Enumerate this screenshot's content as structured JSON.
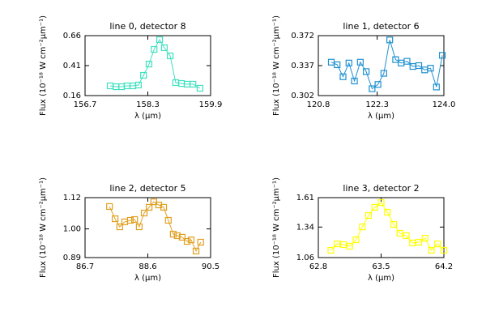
{
  "chart_data": [
    {
      "type": "line",
      "title": "line 0, detector 8",
      "xlabel": "λ (μm)",
      "ylabel": "Flux (10⁻¹⁸ W cm⁻²μm⁻¹)",
      "color": "#40e0c0",
      "marker": "square",
      "x": [
        157.34,
        157.49,
        157.63,
        157.77,
        157.92,
        158.06,
        158.19,
        158.33,
        158.46,
        158.6,
        158.72,
        158.87,
        159.01,
        159.16,
        159.3,
        159.45,
        159.63
      ],
      "values": [
        0.241,
        0.234,
        0.234,
        0.241,
        0.241,
        0.248,
        0.329,
        0.423,
        0.545,
        0.626,
        0.559,
        0.491,
        0.268,
        0.261,
        0.255,
        0.255,
        0.221
      ],
      "xlim": [
        156.7,
        159.9
      ],
      "xticks": [
        156.7,
        158.3,
        159.9
      ],
      "ylim": [
        0.16,
        0.66
      ],
      "yticks": [
        0.16,
        0.41,
        0.66
      ]
    },
    {
      "type": "line",
      "title": "line 1, detector 6",
      "xlabel": "λ (μm)",
      "ylabel": "Flux (10⁻¹⁸ W cm⁻²μm⁻¹)",
      "color": "#1e90d0",
      "marker": "square",
      "x": [
        121.13,
        121.28,
        121.43,
        121.58,
        121.72,
        121.87,
        122.02,
        122.17,
        122.32,
        122.47,
        122.62,
        122.77,
        122.91,
        123.06,
        123.21,
        123.36,
        123.51,
        123.66,
        123.81,
        123.96
      ],
      "values": [
        0.341,
        0.338,
        0.324,
        0.34,
        0.319,
        0.341,
        0.33,
        0.31,
        0.315,
        0.328,
        0.367,
        0.344,
        0.34,
        0.342,
        0.336,
        0.337,
        0.332,
        0.334,
        0.312,
        0.349
      ],
      "xlim": [
        120.8,
        124.0
      ],
      "xticks": [
        120.8,
        122.3,
        {
          "value": 124,
          "label": "124.0"
        }
      ],
      "ylim": [
        0.302,
        0.372
      ],
      "yticks": [
        0.302,
        0.337,
        0.372
      ]
    },
    {
      "type": "line",
      "title": "line 2, detector 5",
      "xlabel": "λ (μm)",
      "ylabel": "Flux (10⁻¹⁸ W cm⁻²μm⁻¹)",
      "color": "#e0a020",
      "marker": "square",
      "x": [
        87.44,
        87.61,
        87.75,
        87.9,
        88.07,
        88.2,
        88.34,
        88.49,
        88.64,
        88.78,
        88.93,
        89.08,
        89.22,
        89.37,
        89.49,
        89.64,
        89.79,
        89.91,
        90.06,
        90.2
      ],
      "values": [
        1.086,
        1.039,
        1.008,
        1.027,
        1.033,
        1.036,
        1.008,
        1.061,
        1.083,
        1.104,
        1.092,
        1.083,
        1.033,
        0.98,
        0.974,
        0.968,
        0.952,
        0.958,
        0.915,
        0.949
      ],
      "xlim": [
        86.7,
        90.5
      ],
      "xticks": [
        86.7,
        88.6,
        90.5
      ],
      "ylim": [
        0.89,
        1.12
      ],
      "yticks": [
        0.89,
        {
          "value": 1,
          "label": "1.00"
        },
        1.12
      ]
    },
    {
      "type": "line",
      "title": "line 3, detector 2",
      "xlabel": "λ (μm)",
      "ylabel": "Flux (10⁻¹⁸ W cm⁻²μm⁻¹)",
      "color": "#ffff00",
      "marker": "square",
      "x": [
        62.94,
        63.01,
        63.08,
        63.15,
        63.22,
        63.29,
        63.36,
        63.43,
        63.5,
        63.57,
        63.64,
        63.71,
        63.78,
        63.85,
        63.92,
        63.99,
        64.06,
        64.13,
        64.2
      ],
      "values": [
        1.127,
        1.186,
        1.179,
        1.164,
        1.223,
        1.342,
        1.446,
        1.521,
        1.565,
        1.476,
        1.365,
        1.283,
        1.261,
        1.194,
        1.201,
        1.238,
        1.127,
        1.186,
        1.127
      ],
      "xlim": [
        62.8,
        64.2
      ],
      "xticks": [
        62.8,
        63.5,
        64.2
      ],
      "ylim": [
        1.06,
        1.61
      ],
      "yticks": [
        1.06,
        1.34,
        1.61
      ]
    }
  ]
}
